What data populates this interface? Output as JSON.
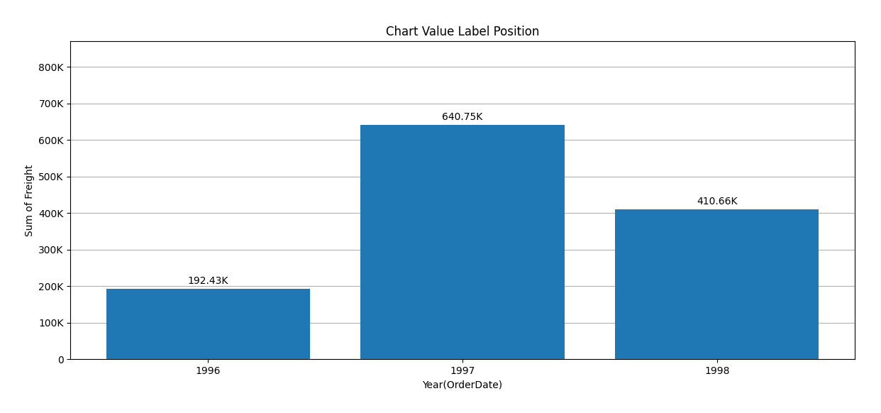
{
  "chart_data": {
    "type": "bar",
    "title": "Chart Value Label Position",
    "categories": [
      "1996",
      "1997",
      "1998"
    ],
    "values": [
      192430,
      640750,
      410660
    ],
    "value_labels": [
      "192.43K",
      "640.75K",
      "410.66K"
    ],
    "data_labels": true,
    "xlabel": "Year(OrderDate)",
    "ylabel": "Sum of Freight",
    "ylim": [
      0,
      870000
    ],
    "yticks": [
      0,
      {
        "value": 100000,
        "label": "100K"
      },
      {
        "value": 200000,
        "label": "200K"
      },
      {
        "value": 300000,
        "label": "300K"
      },
      {
        "value": 400000,
        "label": "400K"
      },
      {
        "value": 500000,
        "label": "500K"
      },
      {
        "value": 600000,
        "label": "600K"
      },
      {
        "value": 700000,
        "label": "700K"
      },
      {
        "value": 800000,
        "label": "800K"
      }
    ],
    "grid": true
  }
}
